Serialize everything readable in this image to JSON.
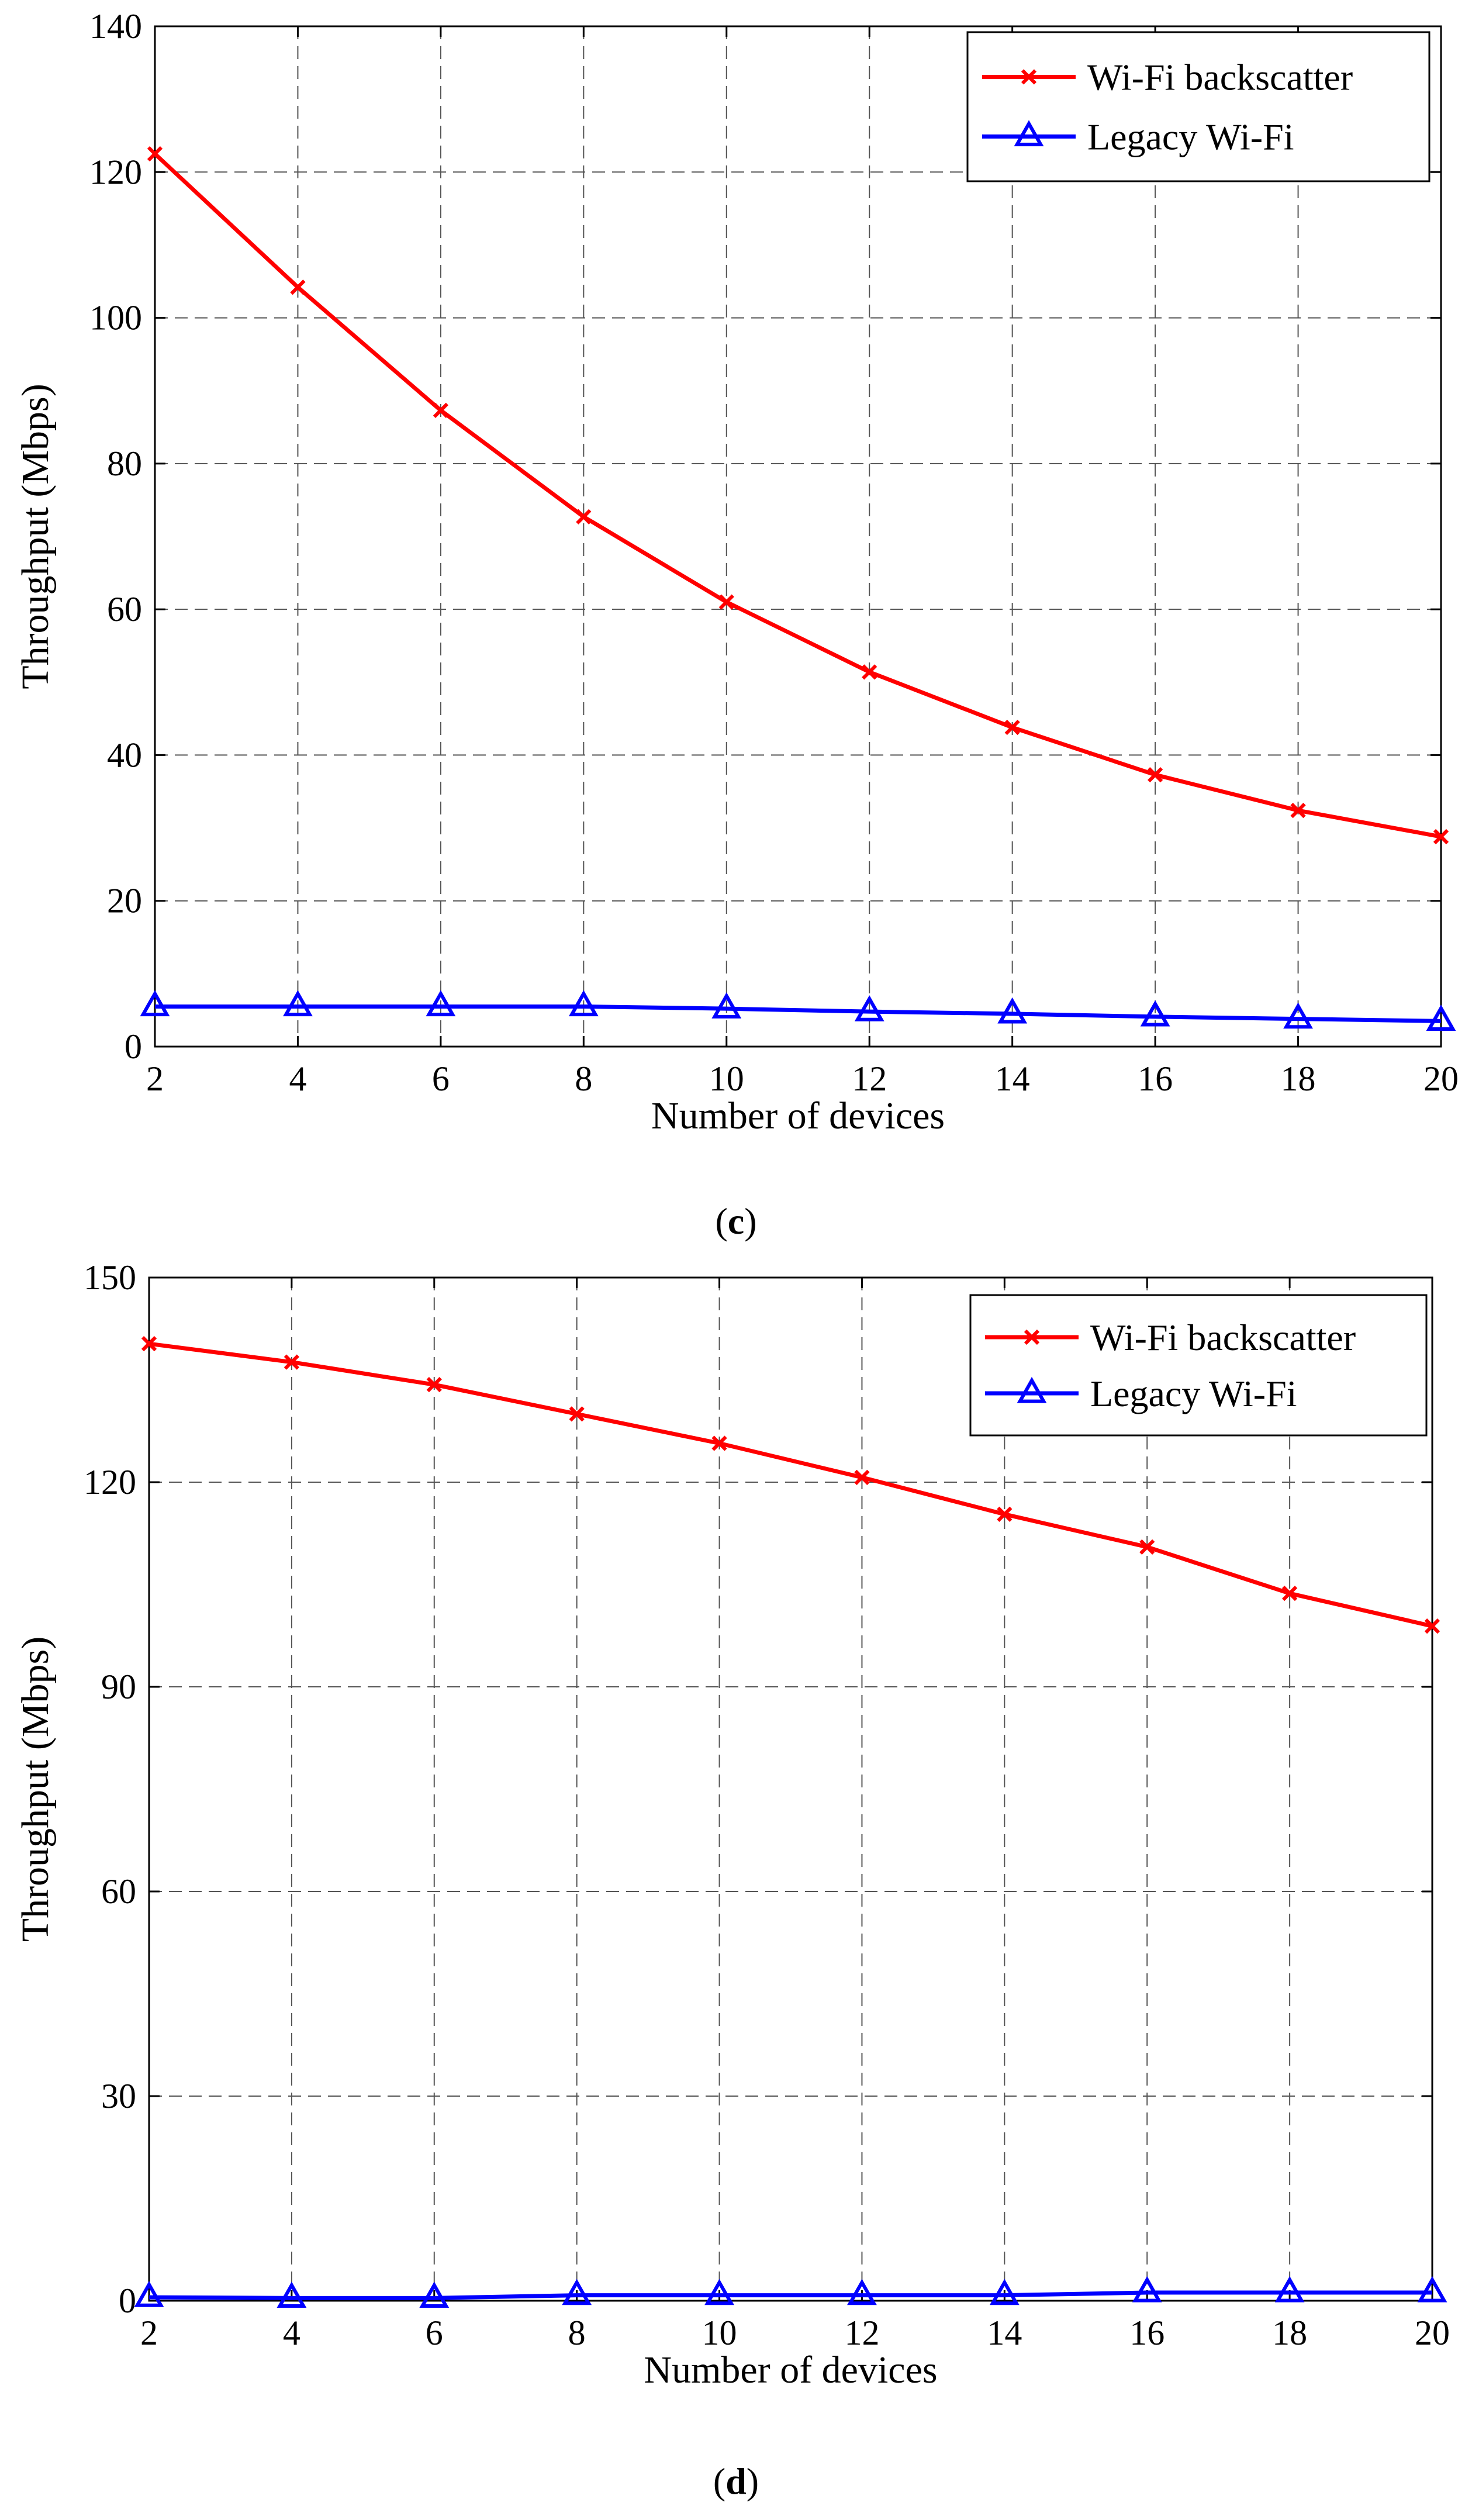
{
  "chart_data": [
    {
      "type": "line",
      "panel_label": "c",
      "title": "",
      "xlabel": "Number of devices",
      "ylabel": "Throughput (Mbps)",
      "x": [
        2,
        4,
        6,
        8,
        10,
        12,
        14,
        16,
        18,
        20
      ],
      "xlim": [
        2,
        20
      ],
      "ylim": [
        0,
        140
      ],
      "xticks": [
        2,
        4,
        6,
        8,
        10,
        12,
        14,
        16,
        18,
        20
      ],
      "yticks": [
        0,
        20,
        40,
        60,
        80,
        100,
        120,
        140
      ],
      "grid": true,
      "legend_position": "top-right",
      "series": [
        {
          "name": "Wi-Fi backscatter",
          "color": "#ff0000",
          "marker": "x",
          "values": [
            122.5,
            104.2,
            87.3,
            72.7,
            61.0,
            51.4,
            43.8,
            37.3,
            32.4,
            28.8
          ]
        },
        {
          "name": "Legacy Wi-Fi",
          "color": "#0000ff",
          "marker": "triangle",
          "values": [
            5.5,
            5.5,
            5.5,
            5.5,
            5.2,
            4.8,
            4.5,
            4.1,
            3.8,
            3.5
          ]
        }
      ]
    },
    {
      "type": "line",
      "panel_label": "d",
      "title": "",
      "xlabel": "Number of devices",
      "ylabel": "Throughput (Mbps)",
      "x": [
        2,
        4,
        6,
        8,
        10,
        12,
        14,
        16,
        18,
        20
      ],
      "xlim": [
        2,
        20
      ],
      "ylim": [
        0,
        150
      ],
      "xticks": [
        2,
        4,
        6,
        8,
        10,
        12,
        14,
        16,
        18,
        20
      ],
      "yticks": [
        0,
        30,
        60,
        90,
        120,
        150
      ],
      "grid": true,
      "legend_position": "top-right",
      "series": [
        {
          "name": "Wi-Fi backscatter",
          "color": "#ff0000",
          "marker": "x",
          "values": [
            140.3,
            137.6,
            134.3,
            130.0,
            125.7,
            120.7,
            115.3,
            110.5,
            103.7,
            98.9
          ]
        },
        {
          "name": "Legacy Wi-Fi",
          "color": "#0000ff",
          "marker": "triangle",
          "values": [
            0.5,
            0.4,
            0.4,
            0.8,
            0.8,
            0.8,
            0.8,
            1.2,
            1.2,
            1.2
          ]
        }
      ]
    }
  ]
}
